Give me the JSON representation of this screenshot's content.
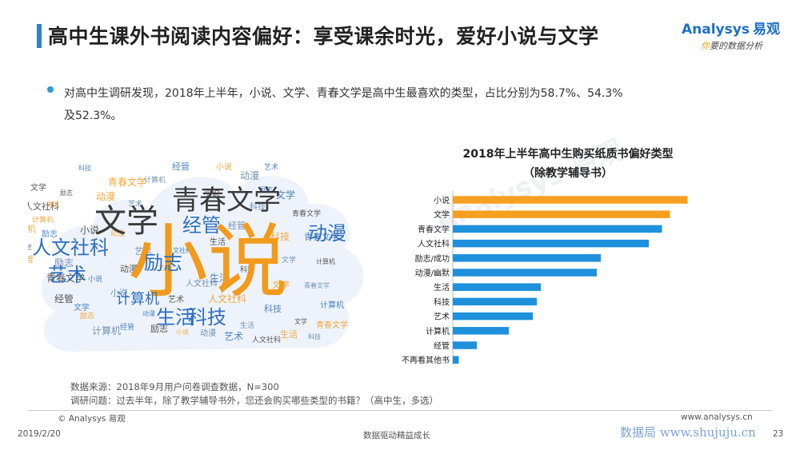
{
  "header": {
    "title": "高中生课外书阅读内容偏好：享受课余时光，爱好小说与文学",
    "logo_main": "Analysys",
    "logo_cn": "易观",
    "logo_sub_a": "你",
    "logo_sub_b": "要的数据分析"
  },
  "bullet": {
    "line1": "对高中生调研发现，2018年上半年，小说、文学、青春文学是高中生最喜欢的类型，占比分别为58.7%、54.3%",
    "line2": "及52.3%。"
  },
  "word_cloud": {
    "big_words": [
      {
        "text": "小说",
        "color": "#f29a1b"
      },
      {
        "text": "文学",
        "color": "#3a3a3a"
      },
      {
        "text": "青春文学",
        "color": "#3a3a3a"
      },
      {
        "text": "经管",
        "color": "#2e6fbf"
      },
      {
        "text": "动漫",
        "color": "#2e6fbf"
      },
      {
        "text": "人文社科",
        "color": "#2e6fbf"
      },
      {
        "text": "艺术",
        "color": "#2e6fbf"
      },
      {
        "text": "励志",
        "color": "#2e6fbf"
      },
      {
        "text": "生活",
        "color": "#2e6fbf"
      },
      {
        "text": "计算机",
        "color": "#2e6fbf"
      },
      {
        "text": "科技",
        "color": "#2e6fbf"
      }
    ],
    "small_words": [
      "科技",
      "文学",
      "青春文学",
      "计算机",
      "经管",
      "励志",
      "小说",
      "动漫",
      "艺术",
      "人文社科",
      "生活"
    ],
    "small_colors": [
      "#2e6fbf",
      "#3a3a3a",
      "#f29a1b",
      "#5b7fa8"
    ]
  },
  "chart_data": {
    "type": "bar",
    "title": "2018年上半年高中生购买纸质书偏好类型",
    "subtitle": "（除教学辅导书）",
    "categories": [
      "小说",
      "文学",
      "青春文学",
      "人文社科",
      "励志/成功",
      "动漫/幽默",
      "生活",
      "科技",
      "艺术",
      "计算机",
      "经管",
      "不再看其他书"
    ],
    "values": [
      58.7,
      54.3,
      52.3,
      49,
      37,
      36,
      22,
      21,
      20,
      14,
      6,
      1.5
    ],
    "bar_colors": [
      "#f5a01f",
      "#f5a01f",
      "#1f90dc",
      "#1f90dc",
      "#1f90dc",
      "#1f90dc",
      "#1f90dc",
      "#1f90dc",
      "#1f90dc",
      "#1f90dc",
      "#1f90dc",
      "#1f90dc"
    ],
    "xlim": [
      0,
      60
    ],
    "orientation": "horizontal"
  },
  "source": {
    "line1": "数据来源：2018年9月用户问卷调查数据，N=300",
    "line2": "调研问题：过去半年，除了教学辅导书外，您还会购买哪些类型的书籍？（高中生，多选）"
  },
  "footer": {
    "copyright": "© Analysys 易观",
    "website": "www.analysys.cn",
    "date": "2019/2/20",
    "slogan": "数据驱动精益成长",
    "page": "23",
    "watermark_top": "Analysys 易观",
    "watermark_bottom": "数据局 www.shujuju.cn"
  }
}
